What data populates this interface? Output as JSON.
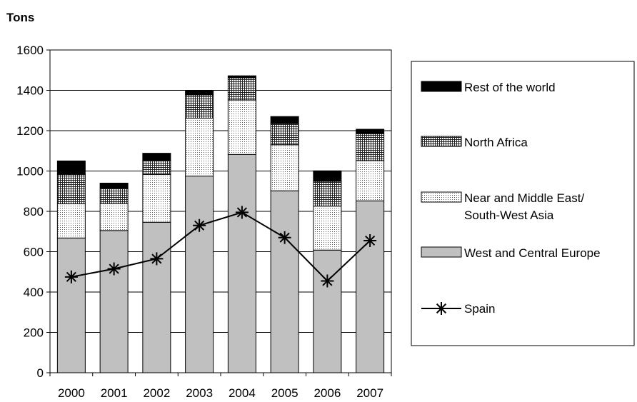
{
  "chart_data": {
    "type": "bar",
    "stacked": true,
    "title": "",
    "xlabel": "",
    "ylabel": "Tons",
    "ylim": [
      0,
      1600
    ],
    "yticks": [
      0,
      200,
      400,
      600,
      800,
      1000,
      1200,
      1400,
      1600
    ],
    "grid": true,
    "legend_position": "right",
    "categories": [
      "2000",
      "2001",
      "2002",
      "2003",
      "2004",
      "2005",
      "2006",
      "2007"
    ],
    "series": [
      {
        "name": "West and Central Europe",
        "kind": "bar",
        "color": "#c0c0c0",
        "pattern": "solid",
        "values": [
          668,
          705,
          746,
          975,
          1082,
          902,
          608,
          852
        ]
      },
      {
        "name": "Near and Middle East/ South-West Asia",
        "kind": "bar",
        "color": "#ffffff",
        "pattern": "fine-dots",
        "values": [
          170,
          135,
          237,
          287,
          270,
          228,
          218,
          200
        ]
      },
      {
        "name": "North Africa",
        "kind": "bar",
        "color": "#ffffff",
        "pattern": "grid",
        "values": [
          145,
          75,
          70,
          115,
          110,
          105,
          123,
          133
        ]
      },
      {
        "name": "Rest of the world",
        "kind": "bar",
        "color": "#000000",
        "pattern": "solid",
        "values": [
          67,
          25,
          35,
          20,
          10,
          35,
          52,
          22
        ]
      },
      {
        "name": "Spain",
        "kind": "line",
        "color": "#000000",
        "marker": "asterisk",
        "values": [
          475,
          515,
          565,
          730,
          795,
          670,
          455,
          655
        ]
      }
    ],
    "legend_order": [
      "Rest of the world",
      "North Africa",
      "Near and Middle East/ South-West Asia",
      "West and Central Europe",
      "Spain"
    ]
  }
}
